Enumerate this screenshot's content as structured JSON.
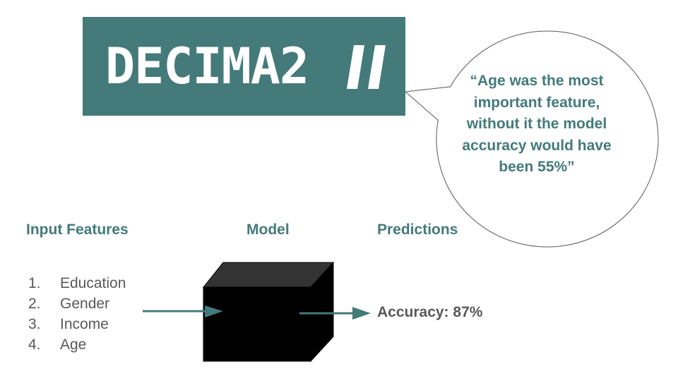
{
  "banner": {
    "title": "DECIMA2",
    "background_color": "#447a7a",
    "logo_mark_icon": "double-slash-logo-mark"
  },
  "speech_bubble": {
    "text": "“Age was the most important feature, without it the model accuracy would have been 55%”",
    "text_color": "#447a7a"
  },
  "headings": {
    "input_features": "Input Features",
    "model": "Model",
    "predictions": "Predictions"
  },
  "features": [
    {
      "number": "1.",
      "label": "Education"
    },
    {
      "number": "2.",
      "label": "Gender"
    },
    {
      "number": "3.",
      "label": "Income"
    },
    {
      "number": "4.",
      "label": "Age"
    }
  ],
  "model": {
    "icon": "black-box-cube-icon"
  },
  "arrows": {
    "color": "#447a7a"
  },
  "result": {
    "accuracy_text": "Accuracy: 87%"
  }
}
